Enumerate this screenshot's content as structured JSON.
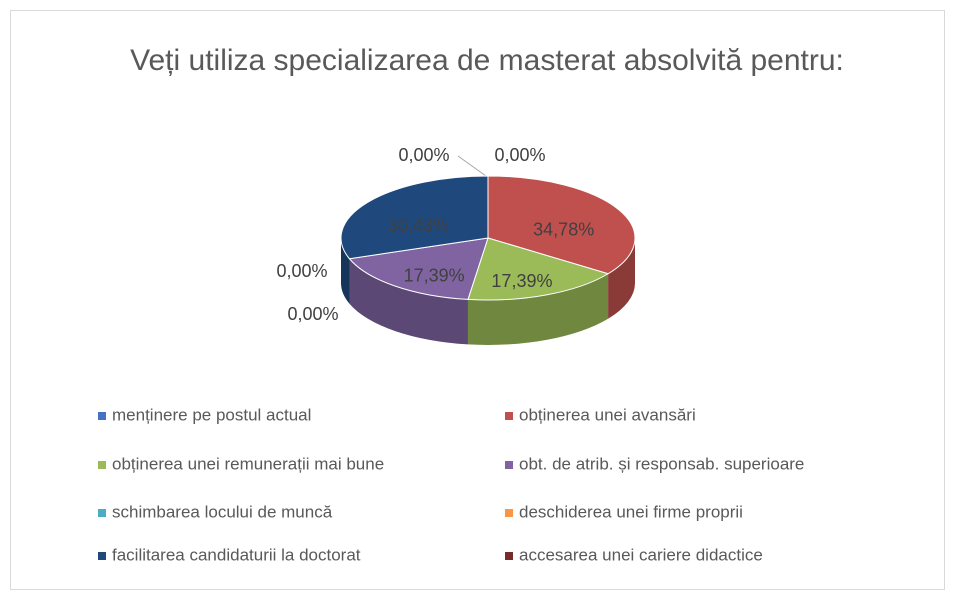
{
  "chart_data": {
    "type": "pie3d",
    "title": "Veți utiliza specializarea de masterat absolvită pentru:",
    "categories": [
      "menținere pe postul actual",
      "obținerea unei avansări",
      "obținerea unei remunerații mai bune",
      "obt. de atrib. și responsab. superioare",
      "schimbarea locului de muncă",
      "deschiderea unei firme proprii",
      "facilitarea candidaturii la doctorat",
      "accesarea unei cariere didactice"
    ],
    "values": [
      0,
      34.78,
      17.39,
      17.39,
      0,
      0,
      30.43,
      0
    ],
    "value_labels": [
      "0,00%",
      "34,78%",
      "17,39%",
      "17,39%",
      "0,00%",
      "0,00%",
      "30,43%",
      "0,00%"
    ],
    "colors": [
      "#4472c4",
      "#c0504d",
      "#9bbb59",
      "#8064a2",
      "#4bacc6",
      "#f79646",
      "#1f497d",
      "#772c2a"
    ],
    "legend": "bottom"
  }
}
